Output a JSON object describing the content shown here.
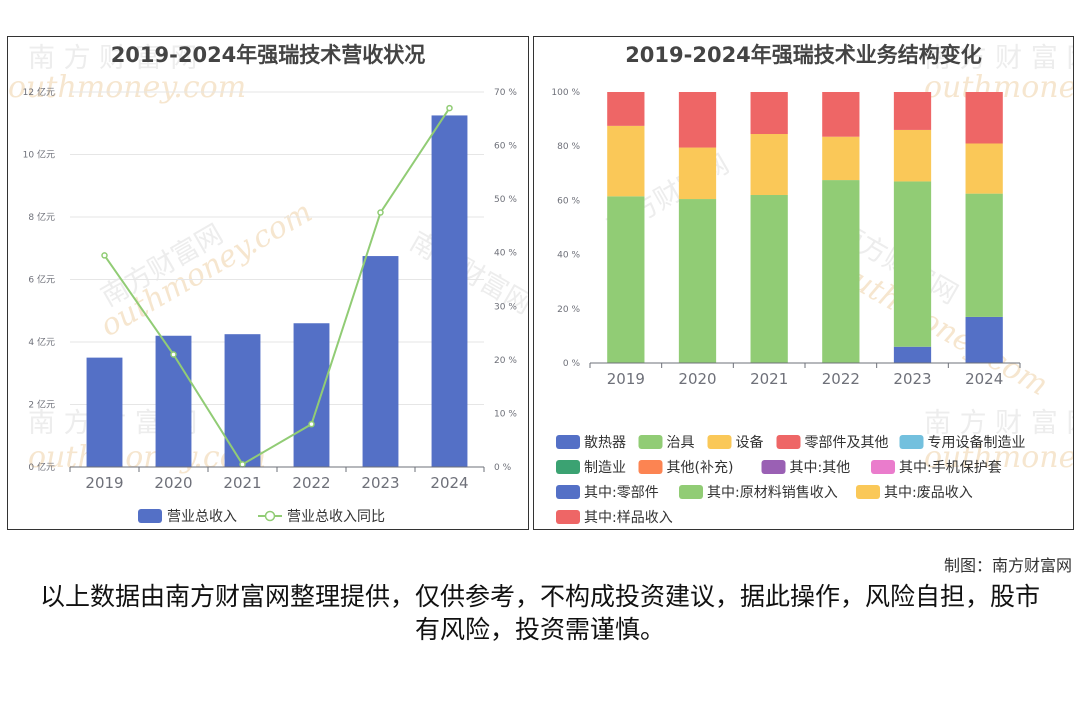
{
  "credit": "制图：南方财富网",
  "disclaimer": "以上数据由南方财富网整理提供，仅供参考，不构成投资建议，据此操作，风险自担，股市有风险，投资需谨慎。",
  "colors": {
    "bar": "#5470c6",
    "line": "#91cc75",
    "grid": "#e6e6e6",
    "axis": "#6e7079"
  },
  "chart_data": [
    {
      "type": "bar",
      "title": "2019-2024年强瑞技术营收状况",
      "categories": [
        "2019",
        "2020",
        "2021",
        "2022",
        "2023",
        "2024"
      ],
      "series": [
        {
          "name": "营业总收入",
          "type": "bar",
          "axis": "left",
          "values": [
            3.5,
            4.2,
            4.25,
            4.6,
            6.75,
            11.25
          ]
        },
        {
          "name": "营业总收入同比",
          "type": "line",
          "axis": "right",
          "values": [
            39.5,
            21,
            0.5,
            8,
            47.5,
            67
          ]
        }
      ],
      "y_left": {
        "ticks": [
          "0 亿元",
          "2 亿元",
          "4 亿元",
          "6 亿元",
          "8 亿元",
          "10 亿元",
          "12 亿元"
        ],
        "ylim": [
          0,
          12
        ]
      },
      "y_right": {
        "ticks": [
          "0 %",
          "10 %",
          "20 %",
          "30 %",
          "40 %",
          "50 %",
          "60 %",
          "70 %"
        ],
        "ylim": [
          0,
          70
        ]
      },
      "grid": true,
      "legend": "bottom"
    },
    {
      "type": "bar",
      "stacked": true,
      "title": "2019-2024年强瑞技术业务结构变化",
      "categories": [
        "2019",
        "2020",
        "2021",
        "2022",
        "2023",
        "2024"
      ],
      "series": [
        {
          "name": "散热器",
          "color": "#5470c6",
          "values": [
            0,
            0,
            0,
            0,
            6,
            17
          ]
        },
        {
          "name": "治具",
          "color": "#91cc75",
          "values": [
            61.5,
            60.5,
            62,
            67.5,
            61,
            45.5
          ]
        },
        {
          "name": "设备",
          "color": "#fac858",
          "values": [
            26,
            19,
            22.5,
            16,
            19,
            18.5
          ]
        },
        {
          "name": "零部件及其他",
          "color": "#ee6666",
          "values": [
            12.5,
            20.5,
            15.5,
            16.5,
            14,
            19
          ]
        },
        {
          "name": "专用设备制造业",
          "color": "#73c0de",
          "values": [
            0,
            0,
            0,
            0,
            0,
            0
          ]
        },
        {
          "name": "制造业",
          "color": "#3ba272",
          "values": [
            0,
            0,
            0,
            0,
            0,
            0
          ]
        },
        {
          "name": "其他(补充)",
          "color": "#fc8452",
          "values": [
            0,
            0,
            0,
            0,
            0,
            0
          ]
        },
        {
          "name": "其中:其他",
          "color": "#9a60b4",
          "values": [
            0,
            0,
            0,
            0,
            0,
            0
          ]
        },
        {
          "name": "其中:手机保护套",
          "color": "#ea7ccc",
          "values": [
            0,
            0,
            0,
            0,
            0,
            0
          ]
        },
        {
          "name": "其中:零部件",
          "color": "#5470c6",
          "values": [
            0,
            0,
            0,
            0,
            0,
            0
          ]
        },
        {
          "name": "其中:原材料销售收入",
          "color": "#91cc75",
          "values": [
            0,
            0,
            0,
            0,
            0,
            0
          ]
        },
        {
          "name": "其中:废品收入",
          "color": "#fac858",
          "values": [
            0,
            0,
            0,
            0,
            0,
            0
          ]
        },
        {
          "name": "其中:样品收入",
          "color": "#ee6666",
          "values": [
            0,
            0,
            0,
            0,
            0,
            0
          ]
        }
      ],
      "y_axis": {
        "ticks": [
          "0 %",
          "20 %",
          "40 %",
          "60 %",
          "80 %",
          "100 %"
        ],
        "ylim": [
          0,
          100
        ]
      },
      "grid": false,
      "legend": "bottom"
    }
  ]
}
